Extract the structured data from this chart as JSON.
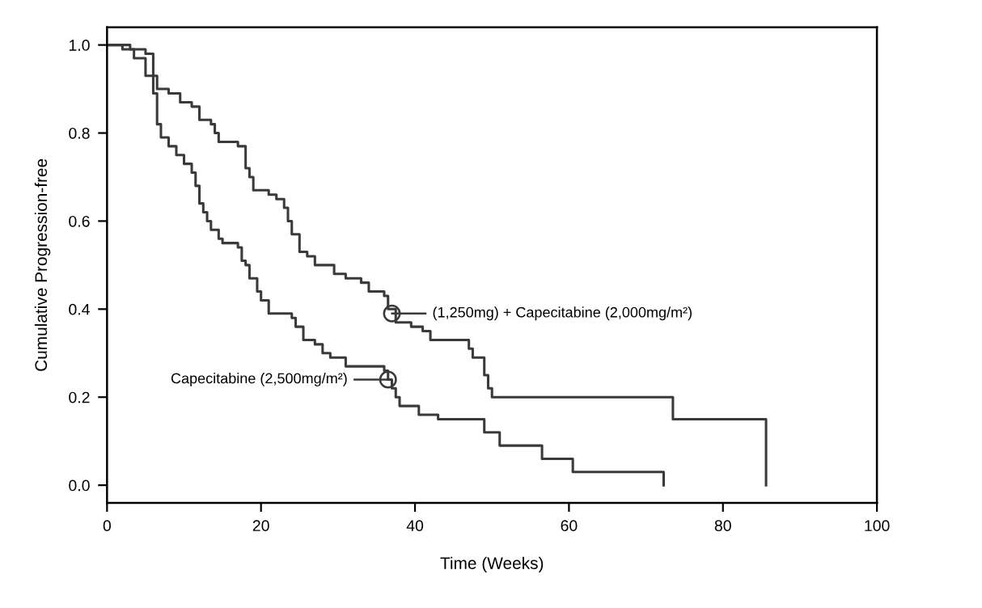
{
  "chart_data": {
    "type": "step",
    "xlabel": "Time (Weeks)",
    "ylabel": "Cumulative Progression-free",
    "xlim": [
      0,
      100
    ],
    "xticks": [
      0,
      20,
      40,
      60,
      80,
      100
    ],
    "ylim": [
      -0.04,
      1.04
    ],
    "yticks": [
      {
        "value": 0,
        "label": "0.0"
      },
      {
        "value": 0.2,
        "label": "0.2"
      },
      {
        "value": 0.4,
        "label": "0.4"
      },
      {
        "value": 0.6,
        "label": "0.6"
      },
      {
        "value": 0.8,
        "label": "0.8"
      },
      {
        "value": 1,
        "label": "1.0"
      }
    ],
    "grid": false,
    "marker": "none",
    "line_style": "solid",
    "series": [
      {
        "color": "#3a3a3a",
        "x": [
          0,
          3,
          5,
          6,
          6.5,
          8,
          9.5,
          11,
          12,
          13.5,
          14,
          14.5,
          17,
          18,
          18.5,
          19,
          21,
          22,
          23,
          23.5,
          24,
          25,
          26,
          27,
          29.5,
          31,
          33,
          34,
          36,
          36.5,
          37.5,
          39.5,
          41,
          42,
          47,
          47.5,
          49,
          49.5,
          50,
          73.5,
          85.6
        ],
        "values": [
          1.0,
          0.99,
          0.98,
          0.93,
          0.9,
          0.89,
          0.87,
          0.86,
          0.83,
          0.82,
          0.8,
          0.78,
          0.77,
          0.72,
          0.7,
          0.67,
          0.66,
          0.65,
          0.63,
          0.6,
          0.57,
          0.53,
          0.52,
          0.5,
          0.48,
          0.47,
          0.46,
          0.44,
          0.43,
          0.4,
          0.37,
          0.36,
          0.35,
          0.33,
          0.31,
          0.29,
          0.25,
          0.22,
          0.2,
          0.15,
          0.0
        ]
      },
      {
        "color": "#3a3a3a",
        "x": [
          0,
          2,
          3.5,
          5,
          6,
          6.5,
          7,
          8,
          9,
          10,
          11,
          11.5,
          12,
          12.5,
          13,
          13.5,
          14.5,
          15,
          17,
          17.5,
          18,
          18.5,
          19.5,
          20,
          21,
          24,
          24.5,
          25.5,
          27,
          28,
          29,
          31,
          36,
          36.5,
          37,
          37.5,
          38,
          40.5,
          43,
          49,
          51,
          56.5,
          60.5,
          72.3
        ],
        "values": [
          1.0,
          0.99,
          0.97,
          0.93,
          0.89,
          0.82,
          0.79,
          0.77,
          0.75,
          0.73,
          0.71,
          0.68,
          0.64,
          0.62,
          0.6,
          0.58,
          0.56,
          0.55,
          0.54,
          0.51,
          0.5,
          0.47,
          0.44,
          0.42,
          0.39,
          0.38,
          0.36,
          0.33,
          0.32,
          0.3,
          0.29,
          0.27,
          0.26,
          0.24,
          0.22,
          0.2,
          0.18,
          0.16,
          0.15,
          0.12,
          0.09,
          0.06,
          0.03,
          0.0
        ]
      }
    ],
    "annotations": [
      {
        "text": "(1,250mg) + Capecitabine (2,000mg/m²)",
        "x": 37,
        "y": 0.39
      },
      {
        "text": "Capecitabine (2,500mg/m²)",
        "x": 36.5,
        "y": 0.24
      }
    ]
  }
}
